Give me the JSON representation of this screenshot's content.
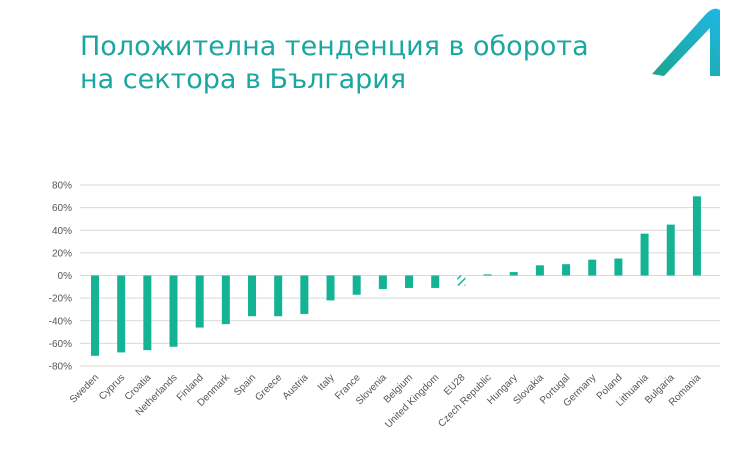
{
  "slide": {
    "title_line1": "Положителна тенденция в оборота",
    "title_line2": "на сектора в България"
  },
  "colors": {
    "title": "#1aa7a1",
    "bar": "#14b394",
    "logo_dark": "#1aa68e",
    "logo_light": "#1fb7e8",
    "grid": "#d9d9d9"
  },
  "chart_data": {
    "type": "bar",
    "title": "",
    "xlabel": "",
    "ylabel": "",
    "ylim": [
      -80,
      80
    ],
    "y_ticks": [
      "80%",
      "60%",
      "40%",
      "20%",
      "0%",
      "-20%",
      "-40%",
      "-60%",
      "-80%"
    ],
    "y_tick_values": [
      80,
      60,
      40,
      20,
      0,
      -20,
      -40,
      -60,
      -80
    ],
    "grid": true,
    "categories": [
      "Sweden",
      "Cyprus",
      "Croatia",
      "Netherlands",
      "Finland",
      "Denmark",
      "Spain",
      "Greece",
      "Austria",
      "Italy",
      "France",
      "Slovenia",
      "Belgium",
      "United Kingdom",
      "EU28",
      "Czech Republic",
      "Hungary",
      "Slovakia",
      "Portugal",
      "Germany",
      "Poland",
      "Lithuania",
      "Bulgaria",
      "Romania"
    ],
    "values": [
      -71,
      -68,
      -66,
      -63,
      -46,
      -43,
      -36,
      -36,
      -34,
      -22,
      -17,
      -12,
      -11,
      -11,
      -9,
      1,
      3,
      9,
      10,
      14,
      15,
      37,
      45,
      70
    ],
    "highlight": {
      "EU28": "hatched"
    }
  }
}
